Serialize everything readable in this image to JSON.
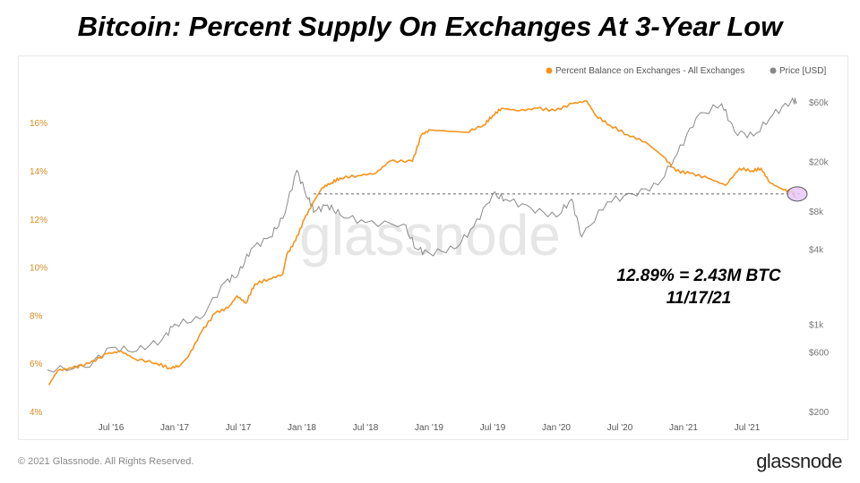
{
  "title": "Bitcoin: Percent Supply On Exchanges At 3-Year Low",
  "footer": {
    "copyright": "© 2021 Glassnode. All Rights Reserved.",
    "logo": "glassnode"
  },
  "annotation": {
    "line1": "12.89% = 2.43M BTC",
    "line2": "11/17/21"
  },
  "chart_data": {
    "type": "line",
    "title": "Bitcoin: Percent Supply On Exchanges At 3-Year Low",
    "watermark": "glassnode",
    "legend": [
      {
        "name": "Percent Balance on Exchanges - All Exchanges",
        "color": "#f7931a"
      },
      {
        "name": "Price [USD]",
        "color": "#888888"
      }
    ],
    "legend_position": "top-right",
    "x_ticks": [
      {
        "label": "Jul '16",
        "t": 2016.5
      },
      {
        "label": "Jan '17",
        "t": 2017.0
      },
      {
        "label": "Jul '17",
        "t": 2017.5
      },
      {
        "label": "Jan '18",
        "t": 2018.0
      },
      {
        "label": "Jul '18",
        "t": 2018.5
      },
      {
        "label": "Jan '19",
        "t": 2019.0
      },
      {
        "label": "Jul '19",
        "t": 2019.5
      },
      {
        "label": "Jan '20",
        "t": 2020.0
      },
      {
        "label": "Jul '20",
        "t": 2020.5
      },
      {
        "label": "Jan '21",
        "t": 2021.0
      },
      {
        "label": "Jul '21",
        "t": 2021.5
      }
    ],
    "x_range": [
      2016.0,
      2021.95
    ],
    "y_left": {
      "ticks": [
        "4%",
        "6%",
        "8%",
        "10%",
        "12%",
        "14%",
        "16%"
      ],
      "values": [
        4,
        6,
        8,
        10,
        12,
        14,
        16
      ],
      "range": [
        4,
        17.2
      ]
    },
    "y_right": {
      "ticks": [
        "$200",
        "$600",
        "$1k",
        "$4k",
        "$8k",
        "$20k",
        "$60k"
      ],
      "values": [
        200,
        600,
        1000,
        4000,
        8000,
        20000,
        60000
      ],
      "scale": "log",
      "range": [
        200,
        60000
      ]
    },
    "reference_value": 12.89,
    "series": [
      {
        "name": "Percent Balance on Exchanges - All Exchanges",
        "axis": "left",
        "points": [
          [
            2016.01,
            5.1
          ],
          [
            2016.08,
            5.7
          ],
          [
            2016.19,
            5.8
          ],
          [
            2016.33,
            6.0
          ],
          [
            2016.47,
            6.4
          ],
          [
            2016.58,
            6.5
          ],
          [
            2016.68,
            6.2
          ],
          [
            2016.86,
            6.0
          ],
          [
            2016.96,
            5.8
          ],
          [
            2017.04,
            5.9
          ],
          [
            2017.11,
            6.3
          ],
          [
            2017.21,
            7.3
          ],
          [
            2017.32,
            8.1
          ],
          [
            2017.42,
            8.3
          ],
          [
            2017.49,
            8.8
          ],
          [
            2017.56,
            8.5
          ],
          [
            2017.63,
            9.3
          ],
          [
            2017.74,
            9.5
          ],
          [
            2017.85,
            9.7
          ],
          [
            2017.88,
            10.5
          ],
          [
            2017.95,
            11.1
          ],
          [
            2018.02,
            12.0
          ],
          [
            2018.09,
            12.7
          ],
          [
            2018.16,
            13.3
          ],
          [
            2018.23,
            13.5
          ],
          [
            2018.3,
            13.7
          ],
          [
            2018.44,
            13.8
          ],
          [
            2018.58,
            13.9
          ],
          [
            2018.69,
            14.4
          ],
          [
            2018.87,
            14.4
          ],
          [
            2018.94,
            15.5
          ],
          [
            2019.01,
            15.7
          ],
          [
            2019.29,
            15.6
          ],
          [
            2019.43,
            15.9
          ],
          [
            2019.5,
            16.3
          ],
          [
            2019.57,
            16.6
          ],
          [
            2019.71,
            16.5
          ],
          [
            2019.85,
            16.6
          ],
          [
            2019.99,
            16.5
          ],
          [
            2020.13,
            16.8
          ],
          [
            2020.24,
            16.9
          ],
          [
            2020.31,
            16.3
          ],
          [
            2020.42,
            15.9
          ],
          [
            2020.56,
            15.5
          ],
          [
            2020.7,
            15.2
          ],
          [
            2020.84,
            14.6
          ],
          [
            2020.94,
            14.0
          ],
          [
            2021.05,
            13.9
          ],
          [
            2021.19,
            13.7
          ],
          [
            2021.33,
            13.4
          ],
          [
            2021.44,
            14.1
          ],
          [
            2021.54,
            14.0
          ],
          [
            2021.61,
            14.1
          ],
          [
            2021.68,
            13.5
          ],
          [
            2021.79,
            13.2
          ],
          [
            2021.86,
            13.1
          ],
          [
            2021.88,
            12.89
          ]
        ]
      },
      {
        "name": "Price [USD]",
        "axis": "right",
        "points": [
          [
            2016.0,
            430
          ],
          [
            2016.3,
            450
          ],
          [
            2016.5,
            650
          ],
          [
            2016.7,
            610
          ],
          [
            2016.9,
            750
          ],
          [
            2017.0,
            1000
          ],
          [
            2017.2,
            1100
          ],
          [
            2017.4,
            2200
          ],
          [
            2017.5,
            2500
          ],
          [
            2017.6,
            4000
          ],
          [
            2017.75,
            5000
          ],
          [
            2017.85,
            7000
          ],
          [
            2017.96,
            17000
          ],
          [
            2018.05,
            10000
          ],
          [
            2018.1,
            8000
          ],
          [
            2018.2,
            9000
          ],
          [
            2018.3,
            7500
          ],
          [
            2018.5,
            6500
          ],
          [
            2018.8,
            6300
          ],
          [
            2018.9,
            4000
          ],
          [
            2019.0,
            3700
          ],
          [
            2019.2,
            4000
          ],
          [
            2019.35,
            6000
          ],
          [
            2019.5,
            11000
          ],
          [
            2019.6,
            10000
          ],
          [
            2019.8,
            8500
          ],
          [
            2020.0,
            7200
          ],
          [
            2020.12,
            10000
          ],
          [
            2020.2,
            5000
          ],
          [
            2020.4,
            9500
          ],
          [
            2020.6,
            11000
          ],
          [
            2020.8,
            13000
          ],
          [
            2020.95,
            23000
          ],
          [
            2021.1,
            45000
          ],
          [
            2021.3,
            58000
          ],
          [
            2021.4,
            35000
          ],
          [
            2021.55,
            32000
          ],
          [
            2021.7,
            47000
          ],
          [
            2021.85,
            62000
          ],
          [
            2021.89,
            60000
          ]
        ]
      }
    ]
  }
}
